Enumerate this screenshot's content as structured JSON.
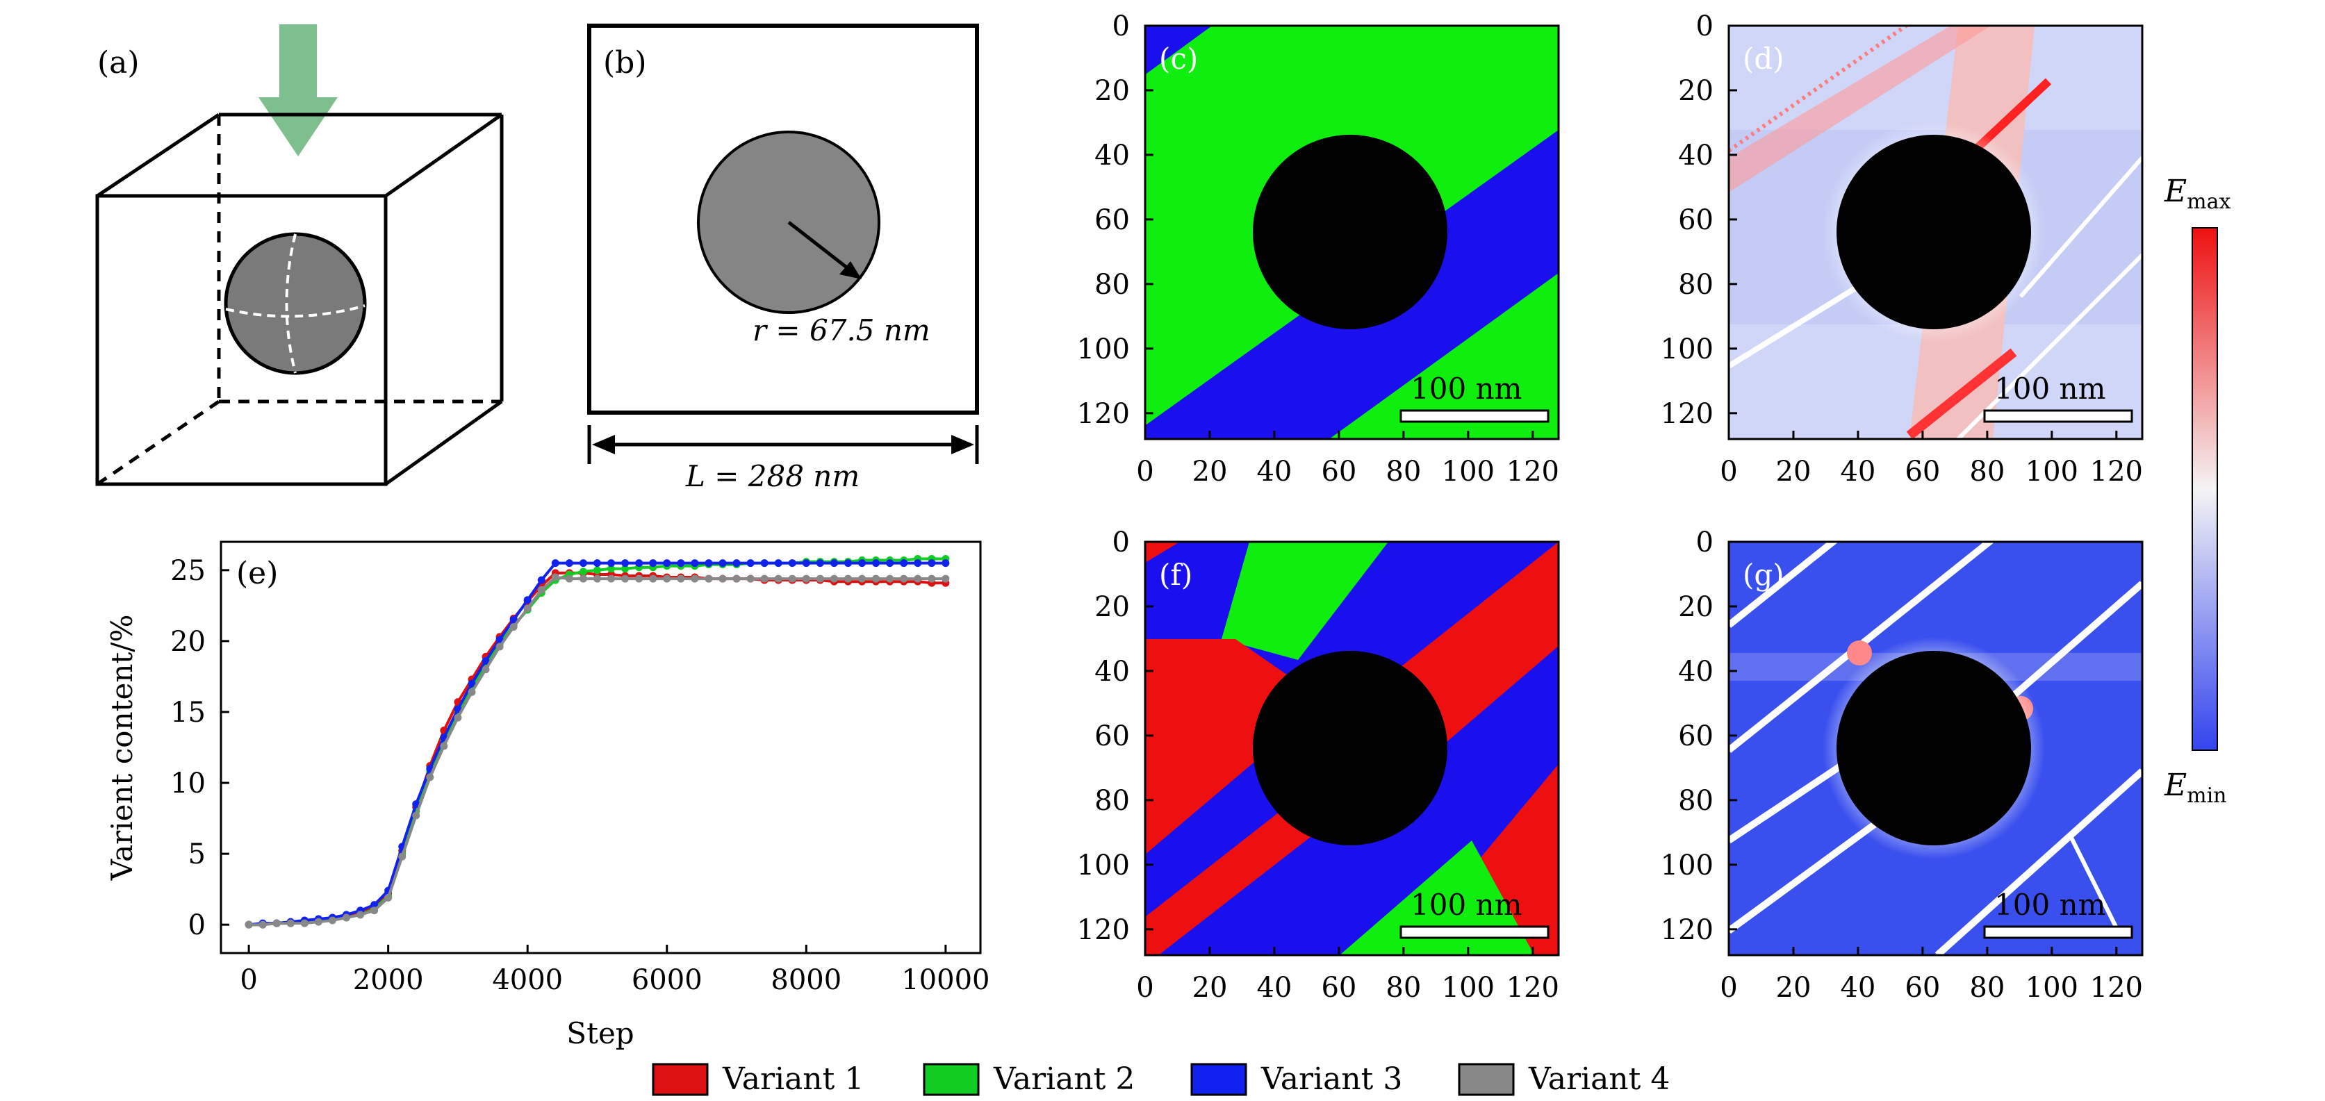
{
  "panels": {
    "a": {
      "label": "(a)"
    },
    "b": {
      "label": "(b)",
      "radius_label": "r = 67.5 nm",
      "length_label": "L = 288 nm"
    },
    "c": {
      "label": "(c)",
      "scalebar": "100 nm"
    },
    "d": {
      "label": "(d)",
      "scalebar": "100 nm"
    },
    "f": {
      "label": "(f)",
      "scalebar": "100 nm"
    },
    "g": {
      "label": "(g)",
      "scalebar": "100 nm"
    },
    "map_ticks": [
      "0",
      "20",
      "40",
      "60",
      "80",
      "100",
      "120"
    ]
  },
  "colorbar": {
    "max_label": "E",
    "max_sub": "max",
    "min_label": "E",
    "min_sub": "min",
    "colors": [
      "#ee1111",
      "#f4f4f4",
      "#3344ee"
    ]
  },
  "colors": {
    "variant1": "#dd1111",
    "variant2": "#11dd11",
    "variant3": "#1111ee",
    "variant4": "#888888"
  },
  "legend": [
    {
      "name": "Variant 1",
      "color": "#dd1111"
    },
    {
      "name": "Variant 2",
      "color": "#11cc22"
    },
    {
      "name": "Variant 3",
      "color": "#1122ee"
    },
    {
      "name": "Variant 4",
      "color": "#888888"
    }
  ],
  "chart_data": {
    "type": "line",
    "panel": "(e)",
    "xlabel": "Step",
    "ylabel": "Varient content/%",
    "xlim": [
      -400,
      10500
    ],
    "ylim": [
      -2,
      27
    ],
    "xticks": [
      0,
      2000,
      4000,
      6000,
      8000,
      10000
    ],
    "yticks": [
      0,
      5,
      10,
      15,
      20,
      25
    ],
    "x": [
      0,
      200,
      400,
      600,
      800,
      1000,
      1200,
      1400,
      1600,
      1800,
      2000,
      2200,
      2400,
      2600,
      2800,
      3000,
      3200,
      3400,
      3600,
      3800,
      4000,
      4200,
      4400,
      4600,
      4800,
      5000,
      5200,
      5400,
      5600,
      5800,
      6000,
      6200,
      6400,
      6600,
      6800,
      7000,
      7200,
      7400,
      7600,
      7800,
      8000,
      8200,
      8400,
      8600,
      8800,
      9000,
      9200,
      9400,
      9600,
      9800,
      10000
    ],
    "series": [
      {
        "name": "Variant 1",
        "color": "#dd1111",
        "values": [
          0,
          0,
          0.1,
          0.1,
          0.2,
          0.3,
          0.4,
          0.6,
          0.8,
          1.2,
          2.2,
          5.2,
          8.3,
          11.2,
          13.7,
          15.7,
          17.3,
          18.9,
          20.3,
          21.6,
          22.8,
          23.9,
          24.8,
          24.8,
          24.8,
          24.7,
          24.7,
          24.6,
          24.6,
          24.6,
          24.5,
          24.5,
          24.5,
          24.4,
          24.4,
          24.4,
          24.4,
          24.3,
          24.3,
          24.3,
          24.3,
          24.3,
          24.2,
          24.2,
          24.2,
          24.2,
          24.2,
          24.2,
          24.2,
          24.1,
          24.1
        ]
      },
      {
        "name": "Variant 2",
        "color": "#11cc22",
        "values": [
          0,
          0,
          0.1,
          0.1,
          0.2,
          0.3,
          0.4,
          0.5,
          0.7,
          1.1,
          2.0,
          5.0,
          8.0,
          10.8,
          13.0,
          15.0,
          16.7,
          18.3,
          19.8,
          21.1,
          22.2,
          23.4,
          24.3,
          24.7,
          24.9,
          25.0,
          25.1,
          25.1,
          25.2,
          25.2,
          25.3,
          25.3,
          25.3,
          25.4,
          25.4,
          25.4,
          25.5,
          25.5,
          25.5,
          25.5,
          25.6,
          25.6,
          25.6,
          25.6,
          25.7,
          25.7,
          25.7,
          25.7,
          25.8,
          25.8,
          25.8
        ]
      },
      {
        "name": "Variant 3",
        "color": "#1122ee",
        "values": [
          0,
          0.1,
          0.1,
          0.2,
          0.3,
          0.4,
          0.5,
          0.7,
          1.0,
          1.4,
          2.4,
          5.5,
          8.5,
          11.0,
          13.2,
          15.2,
          17.0,
          18.6,
          20.1,
          21.5,
          22.9,
          24.3,
          25.5,
          25.5,
          25.5,
          25.5,
          25.5,
          25.5,
          25.5,
          25.5,
          25.5,
          25.5,
          25.5,
          25.5,
          25.5,
          25.5,
          25.5,
          25.5,
          25.5,
          25.5,
          25.5,
          25.5,
          25.5,
          25.5,
          25.5,
          25.5,
          25.5,
          25.5,
          25.5,
          25.5,
          25.5
        ]
      },
      {
        "name": "Variant 4",
        "color": "#888888",
        "values": [
          0,
          0,
          0.1,
          0.1,
          0.1,
          0.2,
          0.3,
          0.5,
          0.7,
          1.0,
          1.9,
          4.8,
          7.7,
          10.4,
          12.6,
          14.6,
          16.4,
          18.0,
          19.6,
          21.0,
          22.3,
          23.6,
          24.5,
          24.4,
          24.4,
          24.4,
          24.4,
          24.4,
          24.4,
          24.4,
          24.4,
          24.4,
          24.4,
          24.4,
          24.4,
          24.4,
          24.4,
          24.4,
          24.4,
          24.4,
          24.4,
          24.4,
          24.4,
          24.4,
          24.4,
          24.4,
          24.4,
          24.4,
          24.4,
          24.4,
          24.4
        ]
      }
    ]
  }
}
